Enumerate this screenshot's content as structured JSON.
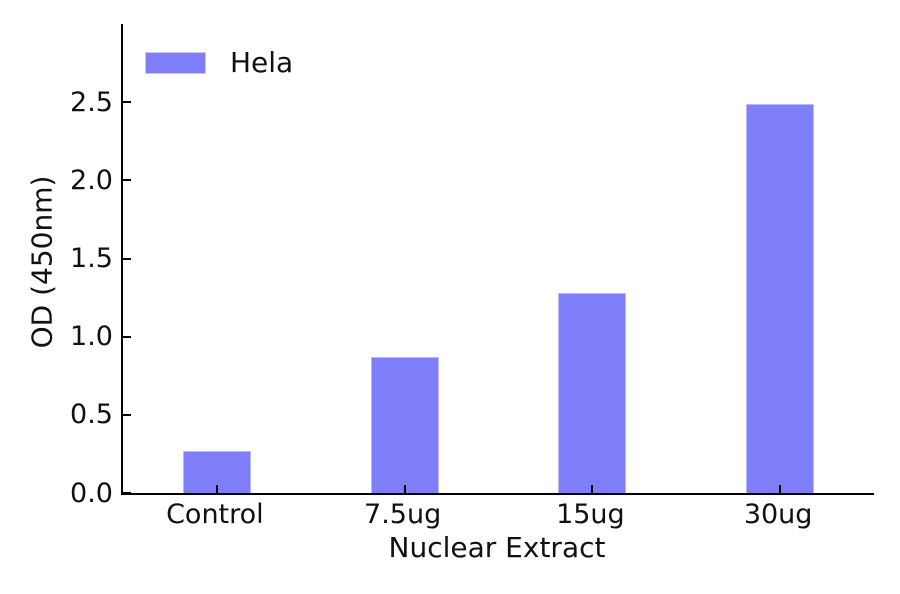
{
  "chart_data": {
    "type": "bar",
    "title": "",
    "categories": [
      "Control",
      "7.5ug",
      "15ug",
      "30ug"
    ],
    "series": [
      {
        "name": "Hela",
        "values": [
          0.27,
          0.87,
          1.28,
          2.49
        ],
        "color": "#7e7ff8"
      }
    ],
    "xlabel": "Nuclear Extract",
    "ylabel": "OD (450nm)",
    "ylim": [
      0,
      3.0
    ],
    "yticks": [
      0.0,
      0.5,
      1.0,
      1.5,
      2.0,
      2.5
    ],
    "ytick_labels": [
      "0.0",
      "0.5",
      "1.0",
      "1.5",
      "2.0",
      "2.5"
    ],
    "grid": false,
    "legend_position": "upper left",
    "bar_color": "#7e7ff8",
    "spine_color": "#000000"
  },
  "legend": {
    "label": "Hela"
  },
  "axes": {
    "xlabel": "Nuclear Extract",
    "ylabel": "OD (450nm)"
  }
}
